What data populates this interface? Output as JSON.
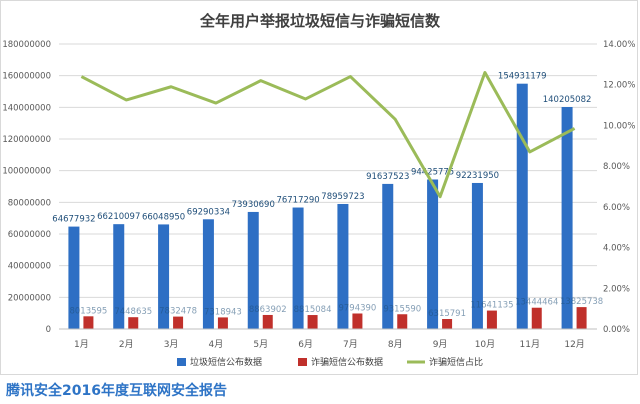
{
  "chart_data": {
    "type": "bar",
    "title": "全年用户举报垃圾短信与诈骗短信数",
    "categories": [
      "1月",
      "2月",
      "3月",
      "4月",
      "5月",
      "6月",
      "7月",
      "8月",
      "9月",
      "10月",
      "11月",
      "12月"
    ],
    "series": [
      {
        "name": "垃圾短信公布数据",
        "kind": "bar",
        "axis": "left",
        "color": "#2e6fc4",
        "values": [
          64677932,
          66210097,
          66048950,
          69290334,
          73930690,
          76717290,
          78959723,
          91637523,
          94425775,
          92231950,
          154931179,
          140205082
        ]
      },
      {
        "name": "诈骗短信公布数据",
        "kind": "bar",
        "axis": "left",
        "color": "#c0302b",
        "values": [
          8013595,
          7448635,
          7832478,
          7318943,
          8863902,
          8815084,
          9794390,
          9315590,
          6315791,
          11641135,
          13444464,
          13825738
        ]
      },
      {
        "name": "诈骗短信占比",
        "kind": "line",
        "axis": "right",
        "color": "#9bbb59",
        "values": [
          12.4,
          11.25,
          11.9,
          11.1,
          12.2,
          11.3,
          12.4,
          10.3,
          6.5,
          12.6,
          8.7,
          9.85
        ]
      }
    ],
    "data_labels": {
      "垃圾短信公布数据": [
        "64677932",
        "66210097",
        "66048950",
        "69290334",
        "73930690",
        "76717290",
        "78959723",
        "91637523",
        "94425775",
        "92231950",
        "154931179",
        "140205082"
      ],
      "诈骗短信公布数据": [
        "8013595",
        "7448635",
        "7832478",
        "7318943",
        "8863902",
        "8815084",
        "9794390",
        "9315590",
        "6315791",
        "11641135",
        "13444464",
        "13825738"
      ]
    },
    "y_left": {
      "min": 0,
      "max": 180000000,
      "ticks": [
        "0",
        "20000000",
        "40000000",
        "60000000",
        "80000000",
        "100000000",
        "120000000",
        "140000000",
        "160000000",
        "180000000"
      ]
    },
    "y_right": {
      "min": 0,
      "max": 14,
      "ticks": [
        "0.00%",
        "2.00%",
        "4.00%",
        "6.00%",
        "8.00%",
        "10.00%",
        "12.00%",
        "14.00%"
      ]
    },
    "grid": true,
    "legend_position": "bottom"
  },
  "footer_text": "腾讯安全2016年度互联网安全报告"
}
